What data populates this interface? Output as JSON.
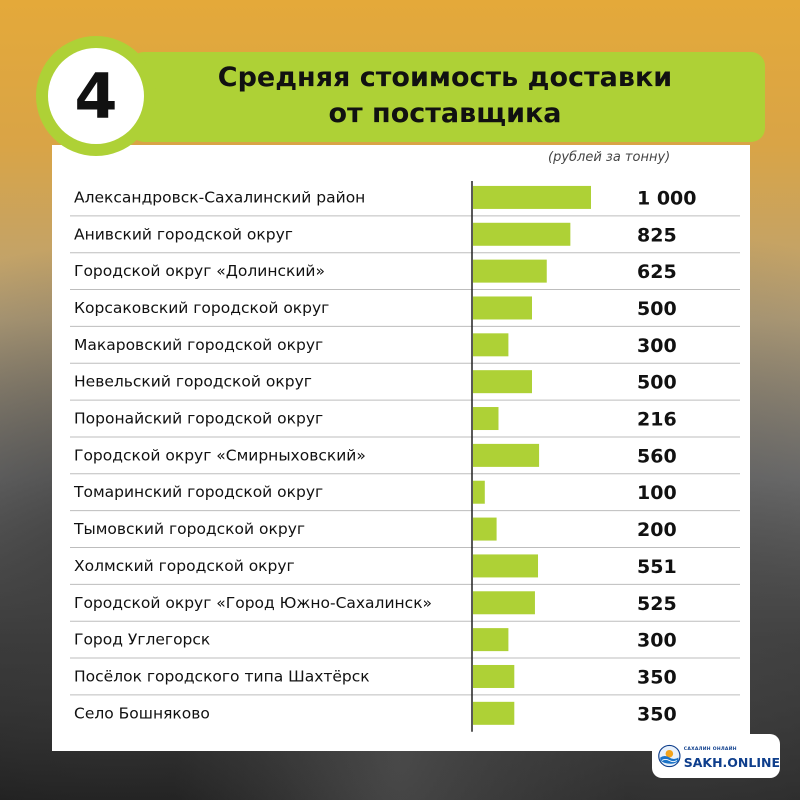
{
  "badge": {
    "number": "4"
  },
  "header": {
    "title_line1": "Средняя стоимость доставки",
    "title_line2": "от поставщика",
    "unit_note": "(рублей за тонну)"
  },
  "colors": {
    "accent": "#aed136",
    "text": "#111111"
  },
  "chart_data": {
    "type": "bar",
    "orientation": "horizontal",
    "title": "Средняя стоимость доставки от поставщика",
    "unit": "(рублей за тонну)",
    "xlim": [
      0,
      1000
    ],
    "grid": false,
    "legend": "none",
    "categories": [
      "Александровск-Сахалинский район",
      "Анивский городской округ",
      "Городской округ «Долинский»",
      "Корсаковский городской округ",
      "Макаровский городской округ",
      "Невельский городской округ",
      "Поронайский городской округ",
      "Городской округ «Смирныховский»",
      "Томаринский городской округ",
      "Тымовский городской округ",
      "Холмский городской округ",
      "Городской округ «Город Южно-Сахалинск»",
      "Город Углегорск",
      "Посёлок городского типа Шахтёрск",
      "Село Бошняково"
    ],
    "values": [
      1000,
      825,
      625,
      500,
      300,
      500,
      216,
      560,
      100,
      200,
      551,
      525,
      300,
      350,
      350
    ],
    "value_labels": [
      "1 000",
      "825",
      "625",
      "500",
      "300",
      "500",
      "216",
      "560",
      "100",
      "200",
      "551",
      "525",
      "300",
      "350",
      "350"
    ]
  },
  "logo": {
    "name": "SAKH.ONLINE",
    "tagline": "САХАЛИН ОНЛАЙН"
  }
}
